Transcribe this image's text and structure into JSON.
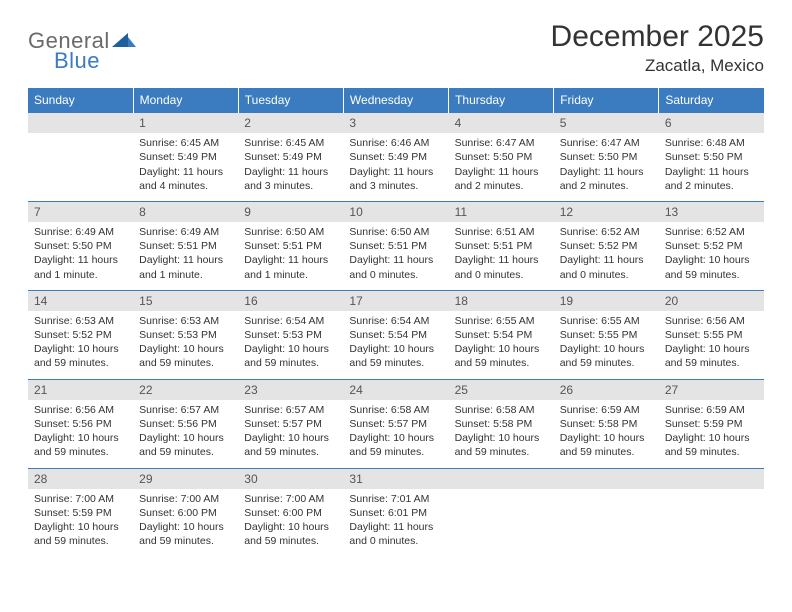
{
  "logo": {
    "word1": "General",
    "word2": "Blue"
  },
  "title": "December 2025",
  "location": "Zacatla, Mexico",
  "weekdays": [
    "Sunday",
    "Monday",
    "Tuesday",
    "Wednesday",
    "Thursday",
    "Friday",
    "Saturday"
  ],
  "colors": {
    "header_bg": "#3b7bbf",
    "header_text": "#ffffff",
    "daynum_bg": "#e4e4e4",
    "row_border": "#3b7bbf",
    "text": "#333333",
    "logo_gray": "#6a6a6a",
    "logo_blue": "#3b7bbf"
  },
  "first_weekday_index": 1,
  "days": [
    {
      "n": 1,
      "sunrise": "6:45 AM",
      "sunset": "5:49 PM",
      "daylight": "11 hours and 4 minutes."
    },
    {
      "n": 2,
      "sunrise": "6:45 AM",
      "sunset": "5:49 PM",
      "daylight": "11 hours and 3 minutes."
    },
    {
      "n": 3,
      "sunrise": "6:46 AM",
      "sunset": "5:49 PM",
      "daylight": "11 hours and 3 minutes."
    },
    {
      "n": 4,
      "sunrise": "6:47 AM",
      "sunset": "5:50 PM",
      "daylight": "11 hours and 2 minutes."
    },
    {
      "n": 5,
      "sunrise": "6:47 AM",
      "sunset": "5:50 PM",
      "daylight": "11 hours and 2 minutes."
    },
    {
      "n": 6,
      "sunrise": "6:48 AM",
      "sunset": "5:50 PM",
      "daylight": "11 hours and 2 minutes."
    },
    {
      "n": 7,
      "sunrise": "6:49 AM",
      "sunset": "5:50 PM",
      "daylight": "11 hours and 1 minute."
    },
    {
      "n": 8,
      "sunrise": "6:49 AM",
      "sunset": "5:51 PM",
      "daylight": "11 hours and 1 minute."
    },
    {
      "n": 9,
      "sunrise": "6:50 AM",
      "sunset": "5:51 PM",
      "daylight": "11 hours and 1 minute."
    },
    {
      "n": 10,
      "sunrise": "6:50 AM",
      "sunset": "5:51 PM",
      "daylight": "11 hours and 0 minutes."
    },
    {
      "n": 11,
      "sunrise": "6:51 AM",
      "sunset": "5:51 PM",
      "daylight": "11 hours and 0 minutes."
    },
    {
      "n": 12,
      "sunrise": "6:52 AM",
      "sunset": "5:52 PM",
      "daylight": "11 hours and 0 minutes."
    },
    {
      "n": 13,
      "sunrise": "6:52 AM",
      "sunset": "5:52 PM",
      "daylight": "10 hours and 59 minutes."
    },
    {
      "n": 14,
      "sunrise": "6:53 AM",
      "sunset": "5:52 PM",
      "daylight": "10 hours and 59 minutes."
    },
    {
      "n": 15,
      "sunrise": "6:53 AM",
      "sunset": "5:53 PM",
      "daylight": "10 hours and 59 minutes."
    },
    {
      "n": 16,
      "sunrise": "6:54 AM",
      "sunset": "5:53 PM",
      "daylight": "10 hours and 59 minutes."
    },
    {
      "n": 17,
      "sunrise": "6:54 AM",
      "sunset": "5:54 PM",
      "daylight": "10 hours and 59 minutes."
    },
    {
      "n": 18,
      "sunrise": "6:55 AM",
      "sunset": "5:54 PM",
      "daylight": "10 hours and 59 minutes."
    },
    {
      "n": 19,
      "sunrise": "6:55 AM",
      "sunset": "5:55 PM",
      "daylight": "10 hours and 59 minutes."
    },
    {
      "n": 20,
      "sunrise": "6:56 AM",
      "sunset": "5:55 PM",
      "daylight": "10 hours and 59 minutes."
    },
    {
      "n": 21,
      "sunrise": "6:56 AM",
      "sunset": "5:56 PM",
      "daylight": "10 hours and 59 minutes."
    },
    {
      "n": 22,
      "sunrise": "6:57 AM",
      "sunset": "5:56 PM",
      "daylight": "10 hours and 59 minutes."
    },
    {
      "n": 23,
      "sunrise": "6:57 AM",
      "sunset": "5:57 PM",
      "daylight": "10 hours and 59 minutes."
    },
    {
      "n": 24,
      "sunrise": "6:58 AM",
      "sunset": "5:57 PM",
      "daylight": "10 hours and 59 minutes."
    },
    {
      "n": 25,
      "sunrise": "6:58 AM",
      "sunset": "5:58 PM",
      "daylight": "10 hours and 59 minutes."
    },
    {
      "n": 26,
      "sunrise": "6:59 AM",
      "sunset": "5:58 PM",
      "daylight": "10 hours and 59 minutes."
    },
    {
      "n": 27,
      "sunrise": "6:59 AM",
      "sunset": "5:59 PM",
      "daylight": "10 hours and 59 minutes."
    },
    {
      "n": 28,
      "sunrise": "7:00 AM",
      "sunset": "5:59 PM",
      "daylight": "10 hours and 59 minutes."
    },
    {
      "n": 29,
      "sunrise": "7:00 AM",
      "sunset": "6:00 PM",
      "daylight": "10 hours and 59 minutes."
    },
    {
      "n": 30,
      "sunrise": "7:00 AM",
      "sunset": "6:00 PM",
      "daylight": "10 hours and 59 minutes."
    },
    {
      "n": 31,
      "sunrise": "7:01 AM",
      "sunset": "6:01 PM",
      "daylight": "11 hours and 0 minutes."
    }
  ],
  "labels": {
    "sunrise": "Sunrise:",
    "sunset": "Sunset:",
    "daylight": "Daylight:"
  }
}
